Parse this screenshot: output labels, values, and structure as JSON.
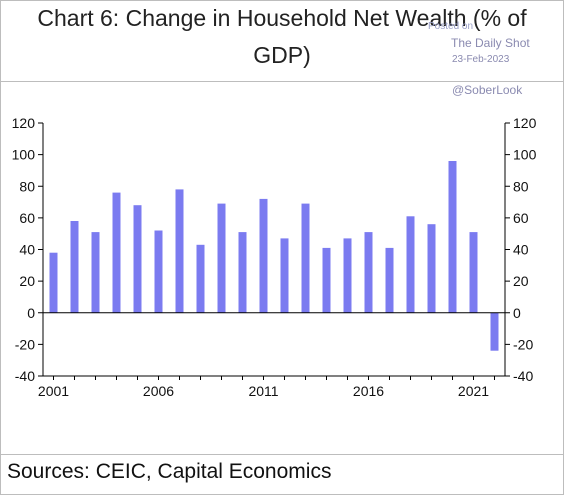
{
  "title_line1": "Chart 6: Change in Household Net Wealth (% of",
  "title_line2": "GDP)",
  "watermark": {
    "posted": "Posted on",
    "site": "The Daily Shot",
    "date": "23-Feb-2023",
    "handle": "@SoberLook"
  },
  "source": "Sources: CEIC, Capital Economics",
  "chart_data": {
    "type": "bar",
    "x": [
      2001,
      2002,
      2003,
      2004,
      2005,
      2006,
      2007,
      2008,
      2009,
      2010,
      2011,
      2012,
      2013,
      2014,
      2015,
      2016,
      2017,
      2018,
      2019,
      2020,
      2021,
      2022
    ],
    "values": [
      38,
      58,
      51,
      76,
      68,
      52,
      78,
      43,
      69,
      51,
      72,
      47,
      69,
      41,
      47,
      51,
      41,
      61,
      56,
      96,
      51,
      -24
    ],
    "xticks": [
      2001,
      2006,
      2011,
      2016,
      2021
    ],
    "ylim": [
      -40,
      120
    ],
    "yticks": [
      -40,
      -20,
      0,
      20,
      40,
      60,
      80,
      100,
      120
    ],
    "right_axis": true,
    "bar_color": "#7b7bf0",
    "grid": false
  }
}
